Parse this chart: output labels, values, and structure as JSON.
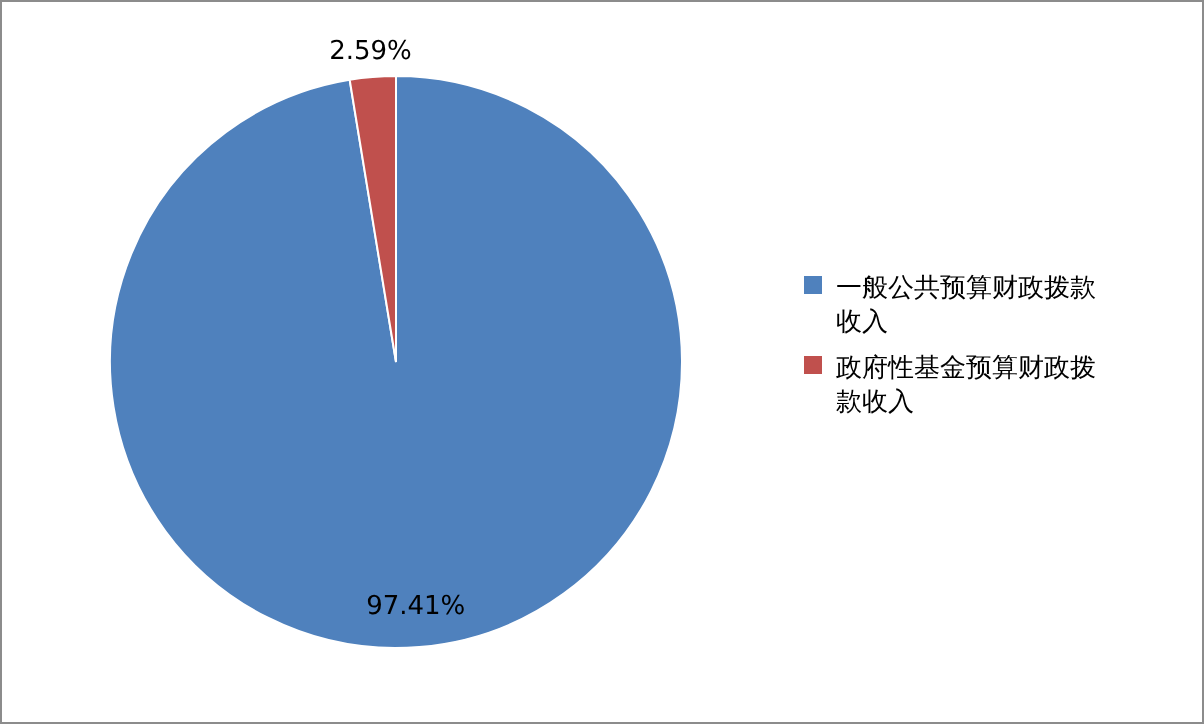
{
  "chart_data": {
    "type": "pie",
    "categories": [
      "一般公共预算财政拨款收入",
      "政府性基金预算财政拨款收入"
    ],
    "values": [
      97.41,
      2.59
    ],
    "colors": [
      "#4f81bd",
      "#c0504d"
    ],
    "value_labels": [
      "97.41%",
      "2.59%"
    ],
    "legend": "right"
  }
}
